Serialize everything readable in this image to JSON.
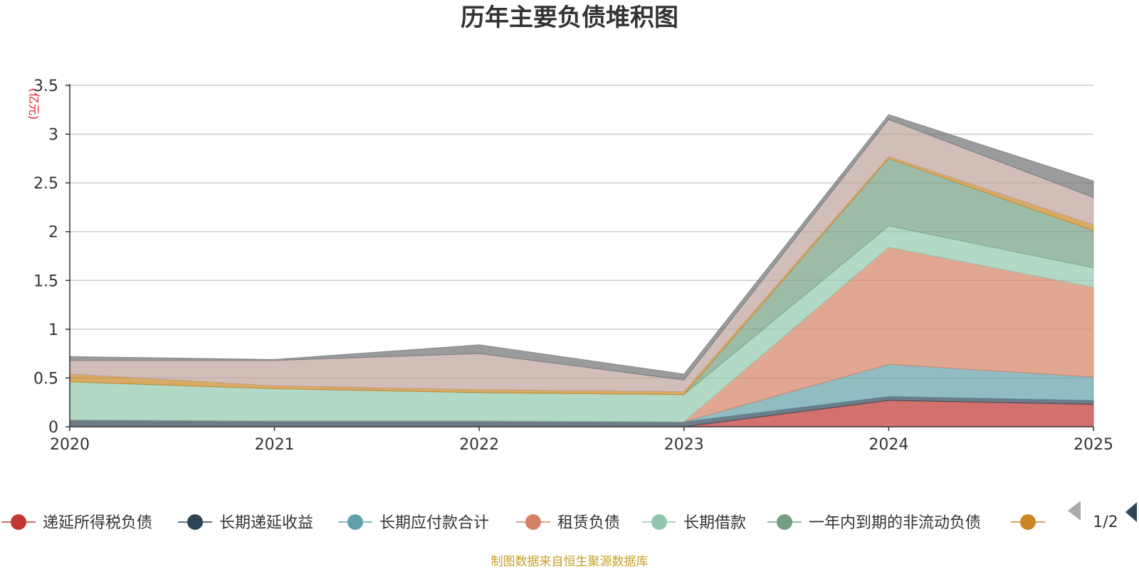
{
  "title": "历年主要负债堆积图",
  "unit_label": "(亿元)",
  "source": "制图数据来自恒生聚源数据库",
  "pager": {
    "text": "1/2",
    "prev_icon": "triangle-left-icon",
    "next_icon": "triangle-right-icon"
  },
  "chart_data": {
    "type": "area",
    "stacked": true,
    "title": "历年主要负债堆积图",
    "ylabel": "(亿元)",
    "xlabel": "",
    "categories": [
      "2020",
      "2021",
      "2022",
      "2023",
      "2024",
      "2025"
    ],
    "ylim": [
      0,
      3.5
    ],
    "yticks": [
      "0",
      "0.5",
      "1",
      "1.5",
      "2",
      "2.5",
      "3",
      "3.5"
    ],
    "grid": true,
    "legend_position": "bottom",
    "series": [
      {
        "name": "递延所得税负债",
        "color": "#c23531",
        "values": [
          0.0,
          0.0,
          0.0,
          0.0,
          0.27,
          0.23
        ]
      },
      {
        "name": "长期递延收益",
        "color": "#2f4554",
        "values": [
          0.07,
          0.06,
          0.06,
          0.05,
          0.04,
          0.04
        ]
      },
      {
        "name": "长期应付款合计",
        "color": "#61a0a8",
        "values": [
          0.0,
          0.0,
          0.0,
          0.0,
          0.33,
          0.24
        ]
      },
      {
        "name": "租赁负债",
        "color": "#d48265",
        "values": [
          0.0,
          0.0,
          0.0,
          0.0,
          1.2,
          0.92
        ]
      },
      {
        "name": "长期借款",
        "color": "#91c7ae",
        "values": [
          0.39,
          0.33,
          0.29,
          0.28,
          0.22,
          0.2
        ]
      },
      {
        "name": "一年内到期的非流动负债",
        "color": "#749f83",
        "values": [
          0.0,
          0.0,
          0.0,
          0.0,
          0.69,
          0.38
        ]
      },
      {
        "name": "",
        "color": "#ca8622",
        "values": [
          0.08,
          0.03,
          0.03,
          0.03,
          0.02,
          0.06
        ]
      },
      {
        "name": "",
        "color": "#bda29a",
        "values": [
          0.14,
          0.26,
          0.37,
          0.12,
          0.38,
          0.28
        ]
      },
      {
        "name": "",
        "color": "#6e7074",
        "values": [
          0.04,
          0.01,
          0.09,
          0.06,
          0.05,
          0.17
        ]
      }
    ]
  }
}
